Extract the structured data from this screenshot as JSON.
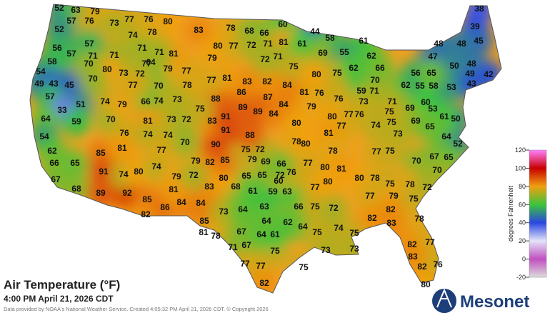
{
  "title": "Air Temperature (°F)",
  "subtitle": "4:00 PM April 21, 2026 CDT",
  "credit": "Data provided by NOAA's National Weather Service. Created 4:05:32 PM April 21, 2026 CDT. © Copyright 2026",
  "logo": "Mesonet",
  "legend": {
    "label": "degrees Fahrenheit",
    "ylim": [
      -20,
      120
    ],
    "yticks": [
      -20,
      0,
      20,
      40,
      60,
      80,
      100,
      120
    ],
    "colors": [
      "#dcdcdc",
      "#c050c0",
      "#e4e4f8",
      "#2a46e0",
      "#3cc43c",
      "#f0a010",
      "#c80000",
      "#ff80ff"
    ]
  },
  "stations": [
    52,
    63,
    79,
    77,
    76,
    80,
    57,
    76,
    73,
    52,
    74,
    78,
    83,
    78,
    68,
    66,
    60,
    44,
    58,
    61,
    38,
    39,
    45,
    48,
    48,
    47,
    50,
    48,
    49,
    42,
    62,
    55,
    58,
    53,
    43,
    56,
    65,
    56,
    57,
    58,
    54,
    49,
    43,
    45,
    57,
    51,
    33,
    64,
    59,
    54,
    62,
    66,
    67,
    68,
    65,
    70,
    76,
    85,
    81,
    91,
    89,
    92,
    74,
    80,
    74,
    85,
    82,
    86,
    84,
    84,
    79,
    81,
    83,
    85,
    81,
    73,
    78,
    71,
    67,
    77,
    77,
    82,
    75,
    67,
    64,
    61,
    62,
    64,
    75,
    74,
    75,
    73,
    73,
    75,
    64,
    63,
    64,
    66,
    75,
    72,
    77,
    68,
    61,
    59,
    63,
    60,
    65,
    65,
    72,
    76,
    80,
    79,
    82,
    85,
    79,
    69,
    66,
    75,
    72,
    72,
    90,
    88,
    91,
    83,
    91,
    89,
    89,
    84,
    88,
    86,
    87,
    84,
    81,
    76,
    79,
    84,
    83,
    82,
    81,
    77,
    78,
    77,
    79,
    79,
    80,
    77,
    72,
    71,
    81,
    61,
    69,
    55,
    62,
    71,
    72,
    75,
    80,
    75,
    70,
    59,
    71,
    76,
    73,
    71,
    66,
    62,
    69,
    75,
    53,
    50,
    61,
    60,
    69,
    65,
    64,
    52,
    75,
    73,
    77,
    76,
    80,
    74,
    77,
    81,
    80,
    78,
    80,
    78,
    77,
    75,
    70,
    67,
    65,
    70,
    80,
    81,
    77,
    80,
    78,
    75,
    78,
    72,
    80,
    77,
    79,
    75,
    82,
    82,
    83,
    78,
    82,
    77,
    83,
    82,
    76,
    80,
    70,
    73,
    74,
    66,
    74,
    79,
    73,
    72,
    75,
    81,
    74,
    74,
    70,
    77,
    77,
    64,
    71,
    81,
    71,
    71,
    71,
    73,
    72,
    80,
    70,
    77,
    57,
    70
  ]
}
